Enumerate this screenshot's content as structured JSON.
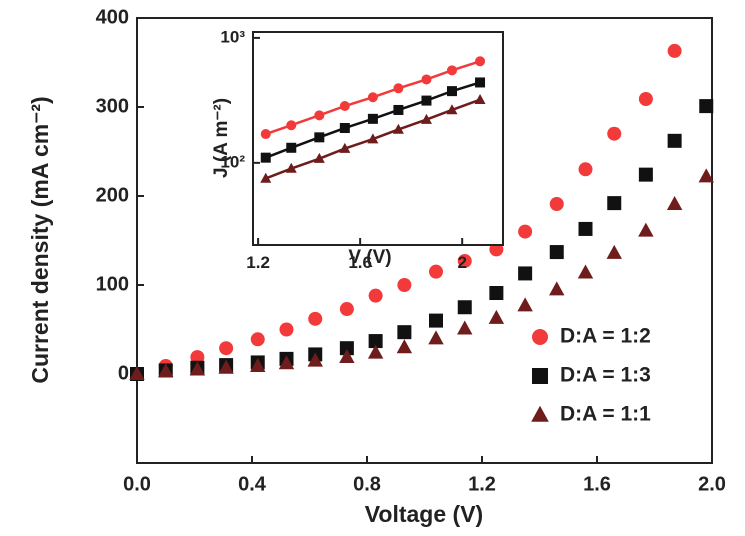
{
  "chart_data": [
    {
      "type": "scatter",
      "xlabel": "Voltage (V)",
      "ylabel": "Current density (mA cm⁻²)",
      "x": [
        0,
        0.1,
        0.21,
        0.31,
        0.42,
        0.52,
        0.62,
        0.73,
        0.83,
        0.93,
        1.04,
        1.14,
        1.25,
        1.35,
        1.46,
        1.56,
        1.66,
        1.77,
        1.87,
        1.98
      ],
      "series": [
        {
          "name": "D:A = 1:2",
          "color": "#f23a3a",
          "marker": "circle",
          "values": [
            0,
            9,
            19,
            29,
            39,
            50,
            62,
            73,
            88,
            100,
            115,
            127,
            140,
            160,
            191,
            230,
            270,
            309,
            363,
            null
          ]
        },
        {
          "name": "D:A = 1:3",
          "color": "#111111",
          "marker": "square",
          "values": [
            0,
            4,
            7,
            10,
            13,
            17,
            22,
            29,
            37,
            47,
            60,
            75,
            91,
            113,
            137,
            163,
            192,
            224,
            262,
            301
          ]
        },
        {
          "name": "D:A = 1:1",
          "color": "#6e1c1c",
          "marker": "triangle",
          "values": [
            0,
            3,
            5,
            7,
            9,
            12,
            15,
            19,
            24,
            30,
            40,
            51,
            63,
            77,
            95,
            114,
            136,
            161,
            191,
            222
          ]
        }
      ],
      "xlim": [
        0,
        2.0
      ],
      "ylim": [
        -100,
        400
      ],
      "xticks": [
        {
          "value": 0,
          "label": "0.0"
        },
        0.4,
        0.8,
        1.2,
        1.6,
        {
          "value": 2.0,
          "label": "2.0"
        }
      ],
      "yticks": [
        0,
        100,
        200,
        300,
        400
      ],
      "legend": "lower right"
    },
    {
      "type": "scatter",
      "xlabel": "V (V)",
      "ylabel": "J (A m⁻²)",
      "x": [
        1.23,
        1.33,
        1.44,
        1.54,
        1.65,
        1.75,
        1.86,
        1.96,
        2.07
      ],
      "series": [
        {
          "name": "D:A = 1:2",
          "color": "#f23a3a",
          "marker": "circle",
          "fit_line": true,
          "values": [
            170,
            200,
            240,
            285,
            335,
            395,
            465,
            550,
            650
          ]
        },
        {
          "name": "D:A = 1:3",
          "color": "#111111",
          "marker": "square",
          "fit_line": true,
          "values": [
            110,
            132,
            160,
            190,
            225,
            265,
            315,
            375,
            440
          ]
        },
        {
          "name": "D:A = 1:1",
          "color": "#6e1c1c",
          "marker": "triangle",
          "fit_line": true,
          "values": [
            75,
            90,
            108,
            130,
            155,
            185,
            222,
            265,
            320
          ]
        }
      ],
      "xlim": [
        1.18,
        2.16
      ],
      "ylim": [
        22,
        1115
      ],
      "ylog": true,
      "xticks": [
        1.2,
        1.6,
        2
      ],
      "yticks": [
        {
          "value": 100,
          "label": "10²"
        },
        {
          "value": 1000,
          "label": "10³"
        }
      ]
    }
  ]
}
